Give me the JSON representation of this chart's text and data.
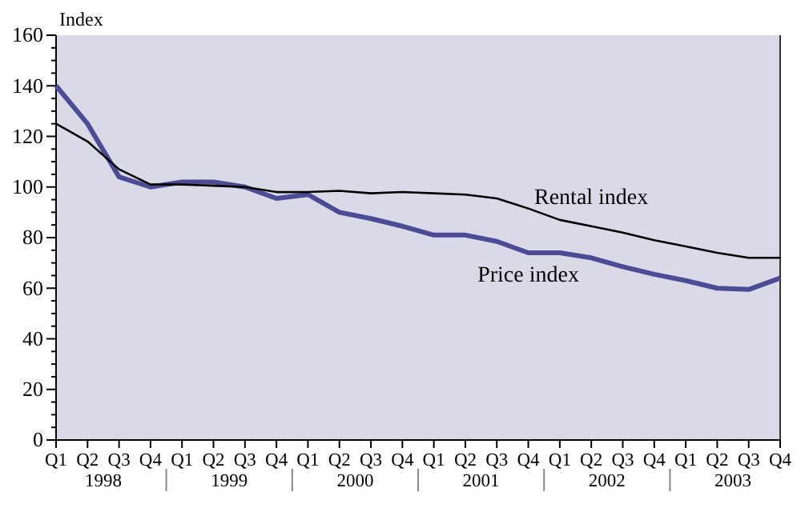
{
  "chart_data": {
    "type": "line",
    "ylabel": "Index",
    "categories": [
      "Q1",
      "Q2",
      "Q3",
      "Q4",
      "Q1",
      "Q2",
      "Q3",
      "Q4",
      "Q1",
      "Q2",
      "Q3",
      "Q4",
      "Q1",
      "Q2",
      "Q3",
      "Q4",
      "Q1",
      "Q2",
      "Q3",
      "Q4",
      "Q1",
      "Q2",
      "Q3",
      "Q4"
    ],
    "annotations": [
      "1998",
      "1999",
      "2000",
      "2001",
      "2002",
      "2003"
    ],
    "series": [
      {
        "name": "Rental index",
        "color": "#000000",
        "values": [
          125,
          118,
          107,
          101,
          101,
          100.5,
          100,
          98,
          98,
          98.5,
          97.5,
          98,
          97.5,
          97,
          95.5,
          91.5,
          87,
          84.5,
          82,
          79,
          76.5,
          74,
          72,
          72
        ]
      },
      {
        "name": "Price index",
        "color": "#4b4b96",
        "values": [
          140,
          125,
          104,
          100,
          102,
          102,
          100,
          95.5,
          97,
          90,
          87.5,
          84.5,
          81,
          81,
          78.5,
          74,
          74,
          72,
          68.5,
          65.5,
          63,
          60,
          59.5,
          64
        ]
      }
    ],
    "ylim": [
      0,
      160
    ],
    "yticks": [
      0,
      {
        "value": 5,
        "label": null
      },
      {
        "value": 10,
        "label": null
      },
      {
        "value": 15,
        "label": null
      },
      20,
      {
        "value": 25,
        "label": null
      },
      {
        "value": 30,
        "label": null
      },
      {
        "value": 35,
        "label": null
      },
      40,
      {
        "value": 45,
        "label": null
      },
      {
        "value": 50,
        "label": null
      },
      {
        "value": 55,
        "label": null
      },
      60,
      {
        "value": 65,
        "label": null
      },
      {
        "value": 70,
        "label": null
      },
      {
        "value": 75,
        "label": null
      },
      80,
      {
        "value": 85,
        "label": null
      },
      {
        "value": 90,
        "label": null
      },
      {
        "value": 95,
        "label": null
      },
      100,
      {
        "value": 105,
        "label": null
      },
      {
        "value": 110,
        "label": null
      },
      {
        "value": 115,
        "label": null
      },
      120,
      {
        "value": 125,
        "label": null
      },
      {
        "value": 130,
        "label": null
      },
      {
        "value": 135,
        "label": null
      },
      140,
      {
        "value": 145,
        "label": null
      },
      {
        "value": 150,
        "label": null
      },
      {
        "value": 155,
        "label": null
      },
      160
    ],
    "legend": false,
    "grid": false,
    "marker": "none",
    "line_style": "solid"
  }
}
